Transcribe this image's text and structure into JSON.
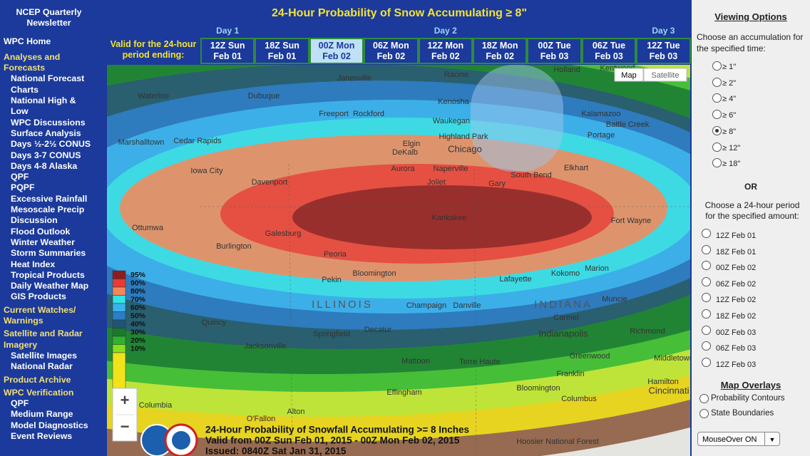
{
  "sidebar": {
    "top_links": [
      "NCEP Quarterly Newsletter",
      "WPC Home"
    ],
    "sections": [
      {
        "heading": "Analyses and Forecasts",
        "links": [
          "National Forecast Charts",
          "National High & Low",
          "WPC Discussions",
          "Surface Analysis",
          "Days ½-2½ CONUS",
          "Days 3-7 CONUS",
          "Days 4-8 Alaska",
          "QPF",
          "PQPF",
          "Excessive Rainfall",
          "Mesoscale Precip Discussion",
          "Flood Outlook",
          "Winter Weather",
          "Storm Summaries",
          "Heat Index",
          "Tropical Products",
          "Daily Weather Map",
          "GIS Products"
        ]
      },
      {
        "heading": "Current Watches/ Warnings",
        "links": []
      },
      {
        "heading": "Satellite and Radar Imagery",
        "links": [
          "Satellite Images",
          "National Radar"
        ]
      },
      {
        "heading": "Product Archive",
        "links": []
      },
      {
        "heading": "WPC Verification",
        "links": [
          "QPF",
          "Medium Range",
          "Model Diagnostics",
          "Event Reviews"
        ]
      }
    ]
  },
  "header": {
    "title": "24-Hour Probability of Snow Accumulating ≥ 8\"",
    "days": [
      "Day 1",
      "Day 2",
      "Day 3"
    ],
    "valid_label": "Valid for the 24-hour period ending:",
    "periods": [
      {
        "time": "12Z Sun",
        "date": "Feb 01"
      },
      {
        "time": "18Z Sun",
        "date": "Feb 01"
      },
      {
        "time": "00Z Mon",
        "date": "Feb 02"
      },
      {
        "time": "06Z Mon",
        "date": "Feb 02"
      },
      {
        "time": "12Z Mon",
        "date": "Feb 02"
      },
      {
        "time": "18Z Mon",
        "date": "Feb 02"
      },
      {
        "time": "00Z Tue",
        "date": "Feb 03"
      },
      {
        "time": "06Z Tue",
        "date": "Feb 03"
      },
      {
        "time": "12Z Tue",
        "date": "Feb 03"
      }
    ]
  },
  "map": {
    "buttons": [
      "Map",
      "Satellite"
    ],
    "zoom": [
      "+",
      "−"
    ],
    "places": [
      "Janesville",
      "Racine",
      "Holland",
      "Kentwood",
      "Waterloo",
      "Dubuque",
      "Kenosha",
      "Freeport",
      "Rockford",
      "Waukegan",
      "Kalamazoo",
      "Battle Creek",
      "Portage",
      "Marshalltown",
      "Cedar Rapids",
      "Highland Park",
      "Elgin",
      "DeKalb",
      "Chicago",
      "Iowa City",
      "Aurora",
      "Naperville",
      "Elkhart",
      "South Bend",
      "Davenport",
      "Joliet",
      "Gary",
      "Kankakee",
      "Ottumwa",
      "Galesburg",
      "Fort Wayne",
      "Burlington",
      "Peoria",
      "Bloomington",
      "Pekin",
      "Marion",
      "Kokomo",
      "Lafayette",
      "ILLINOIS",
      "Champaign",
      "Danville",
      "INDIANA",
      "Muncie",
      "Carmel",
      "Quincy",
      "Decatur",
      "Springfield",
      "Indianapolis",
      "Richmond",
      "Jacksonville",
      "Greenwood",
      "Middletown",
      "Mattoon",
      "Terre Haute",
      "Franklin",
      "Hamilton",
      "Effingham",
      "Bloomington",
      "Cincinnati",
      "Columbus",
      "Columbia",
      "O'Fallon",
      "Alton",
      "Hoosier National Forest"
    ],
    "legend": [
      {
        "label": "95%",
        "color": "#8e1c1c"
      },
      {
        "label": "90%",
        "color": "#e63c32"
      },
      {
        "label": "80%",
        "color": "#f3885c"
      },
      {
        "label": "70%",
        "color": "#33e3e3"
      },
      {
        "label": "60%",
        "color": "#36b4ee"
      },
      {
        "label": "50%",
        "color": "#2b7dc4"
      },
      {
        "label": "40%",
        "color": "#1f5577"
      },
      {
        "label": "30%",
        "color": "#1a7a2c"
      },
      {
        "label": "20%",
        "color": "#2eb32e"
      },
      {
        "label": "10%",
        "color": "#86e01c"
      }
    ],
    "caption": [
      "24-Hour Probability of Snowfall Accumulating >= 8 Inches",
      "Valid from 00Z Sun Feb 01, 2015 - 00Z Mon Feb 02, 2015",
      "Issued: 0840Z Sat Jan 31, 2015"
    ]
  },
  "options": {
    "title": "Viewing Options",
    "accumulation_prompt": "Choose an accumulation for the specified time:",
    "accumulations": [
      "≥ 1\"",
      "≥ 2\"",
      "≥ 4\"",
      "≥ 6\"",
      "≥ 8\"",
      "≥ 12\"",
      "≥ 18\""
    ],
    "or": "OR",
    "period_prompt": "Choose a 24-hour period for the specified amount:",
    "periods": [
      "12Z Feb 01",
      "18Z Feb 01",
      "00Z Feb 02",
      "06Z Feb 02",
      "12Z Feb 02",
      "18Z Feb 02",
      "00Z Feb 03",
      "06Z Feb 03",
      "12Z Feb 03"
    ],
    "overlays_title": "Map Overlays",
    "overlays": [
      "Probability Contours",
      "State Boundaries"
    ],
    "mouseover": "MouseOver ON"
  }
}
